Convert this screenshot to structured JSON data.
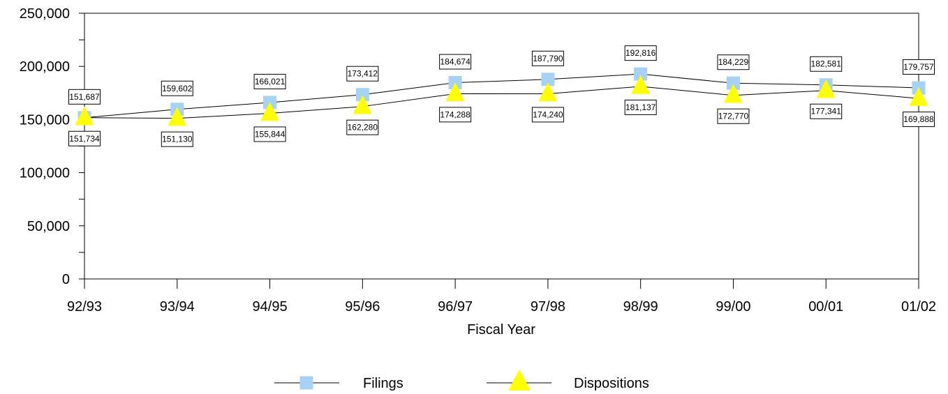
{
  "chart_data": {
    "type": "line",
    "title": "",
    "xlabel": "Fiscal Year",
    "ylabel": "",
    "categories": [
      "92/93",
      "93/94",
      "94/95",
      "95/96",
      "96/97",
      "97/98",
      "98/99",
      "99/00",
      "00/01",
      "01/02"
    ],
    "ylim": [
      0,
      250000
    ],
    "yticks": [
      0,
      50000,
      100000,
      150000,
      200000,
      250000
    ],
    "ytick_labels": [
      "0",
      "50,000",
      "100,000",
      "150,000",
      "200,000",
      "250,000"
    ],
    "grid": false,
    "legend_position": "bottom-center",
    "series": [
      {
        "name": "Filings",
        "marker": "square",
        "color": "#a6d2f7",
        "line_color": "#000000",
        "values": [
          151687,
          159602,
          166021,
          173412,
          184674,
          187790,
          192816,
          184229,
          182581,
          179757
        ],
        "labels": [
          "151,687",
          "159,602",
          "166,021",
          "173,412",
          "184,674",
          "187,790",
          "192,816",
          "184,229",
          "182,581",
          "179,757"
        ]
      },
      {
        "name": "Dispositions",
        "marker": "triangle",
        "color": "#ffff00",
        "line_color": "#000000",
        "values": [
          151734,
          151130,
          155844,
          162280,
          174288,
          174240,
          181137,
          172770,
          177341,
          169888
        ],
        "labels": [
          "151,734",
          "151,130",
          "155,844",
          "162,280",
          "174,288",
          "174,240",
          "181,137",
          "172,770",
          "177,341",
          "169,888"
        ]
      }
    ]
  }
}
